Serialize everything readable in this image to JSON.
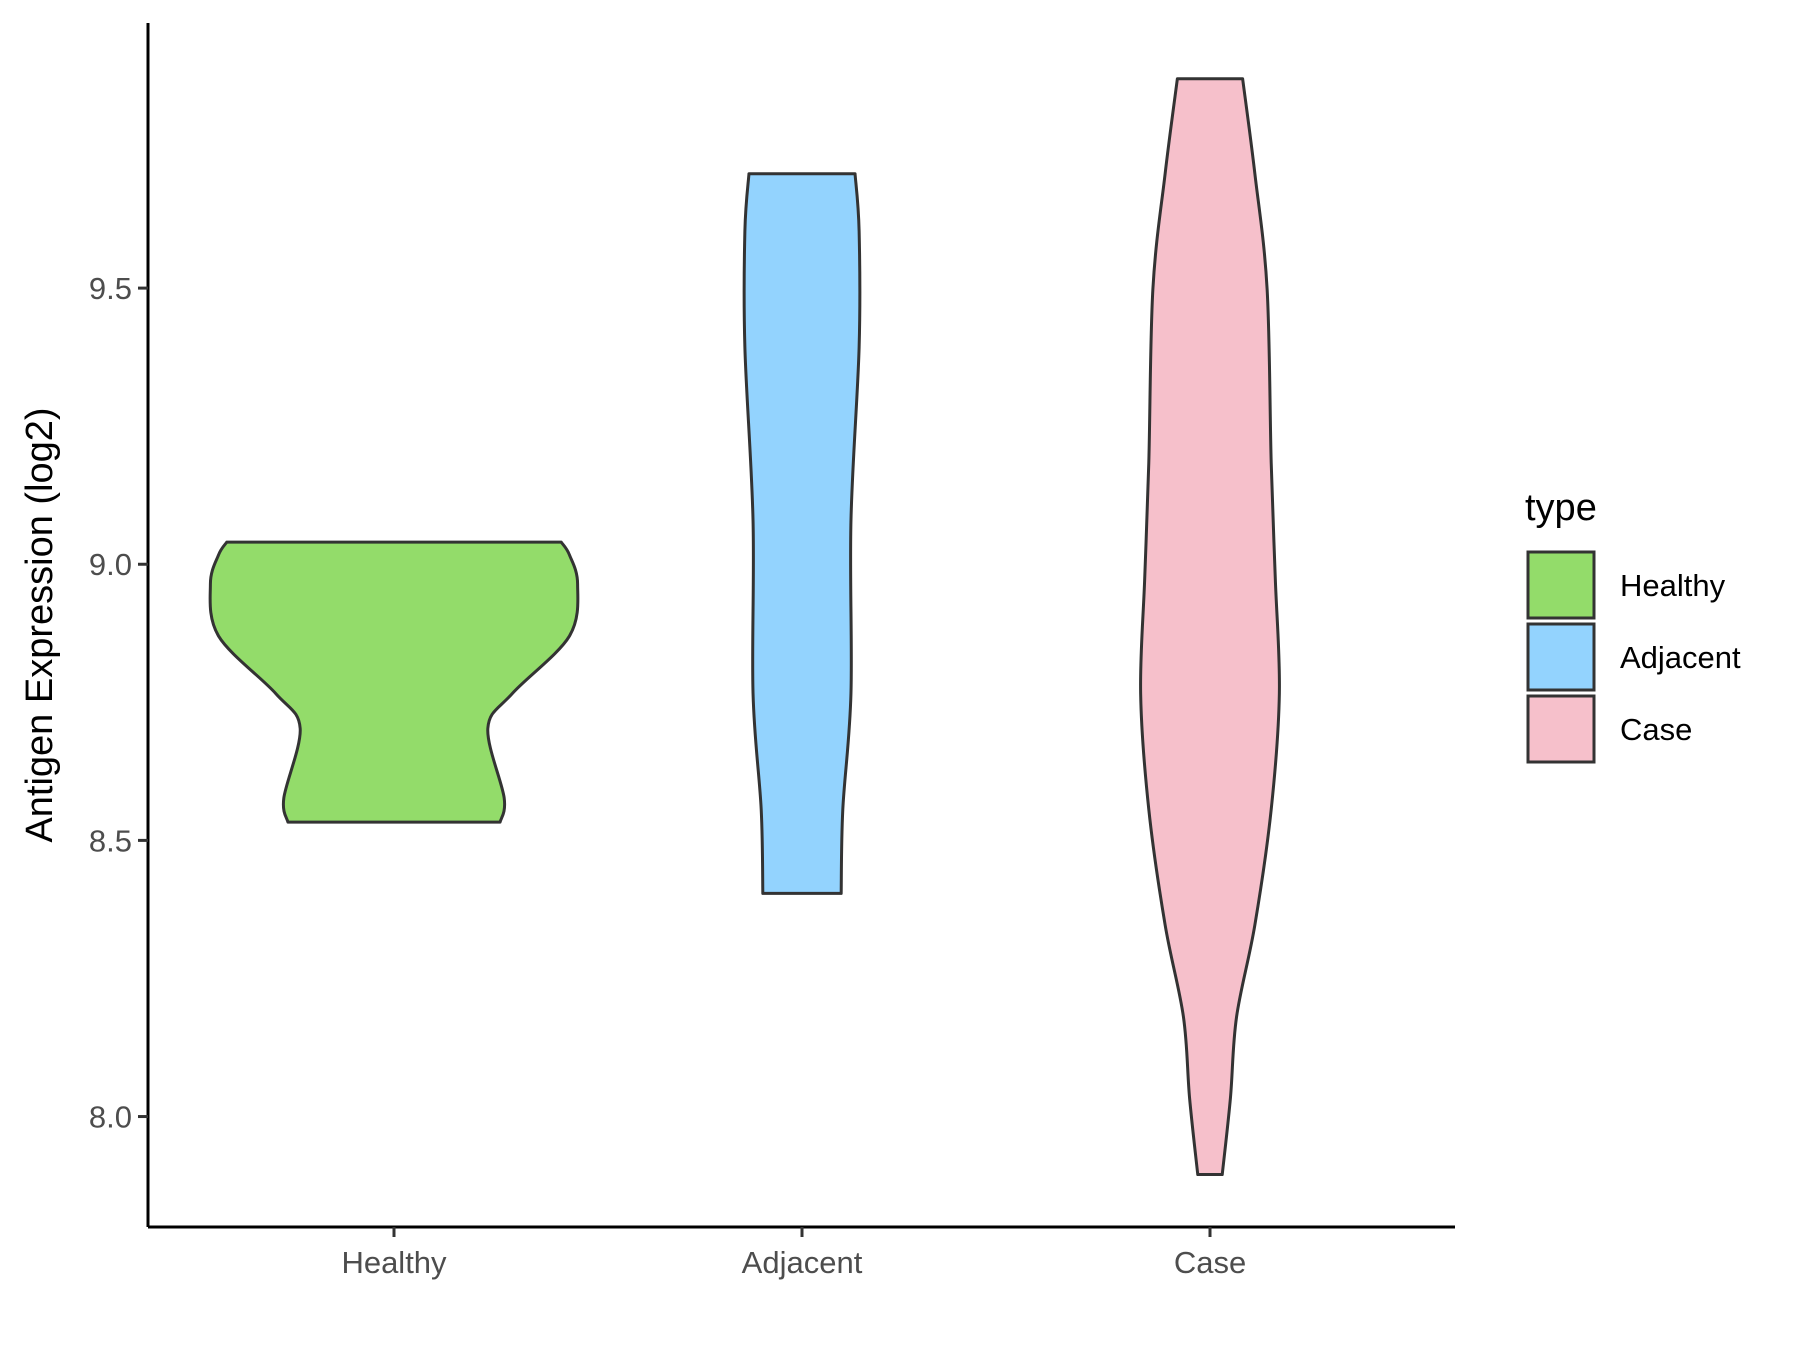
{
  "chart_data": {
    "type": "violin",
    "y_label": "Antigen Expression (log2)",
    "categories": [
      "Healthy",
      "Adjacent",
      "Case"
    ],
    "series": [
      {
        "name": "Healthy",
        "color": "#93dc6a",
        "y": [
          8.533,
          8.577,
          8.703,
          8.766,
          8.87,
          8.964,
          9.017,
          9.04
        ],
        "width": [
          0.26,
          0.27,
          0.23,
          0.29,
          0.43,
          0.45,
          0.43,
          0.41
        ]
      },
      {
        "name": "Adjacent",
        "color": "#93d3fe",
        "y": [
          8.404,
          8.556,
          8.766,
          9.079,
          9.393,
          9.603,
          9.707
        ],
        "width": [
          0.096,
          0.1,
          0.12,
          0.12,
          0.14,
          0.14,
          0.13
        ]
      },
      {
        "name": "Case",
        "color": "#f6c0cb",
        "y": [
          7.895,
          8.033,
          8.18,
          8.347,
          8.556,
          8.766,
          8.975,
          9.184,
          9.498,
          9.707,
          9.879
        ],
        "width": [
          0.03,
          0.05,
          0.065,
          0.11,
          0.15,
          0.17,
          0.16,
          0.15,
          0.14,
          0.11,
          0.08
        ]
      }
    ],
    "ylim": [
      7.8,
      9.98
    ],
    "yticks": [
      {
        "value": 8,
        "label": "8.0"
      },
      {
        "value": 8.5,
        "label": "8.5"
      },
      {
        "value": 9,
        "label": "9.0"
      },
      {
        "value": 9.5,
        "label": "9.5"
      }
    ],
    "legend_title": "type",
    "legend": "right"
  }
}
